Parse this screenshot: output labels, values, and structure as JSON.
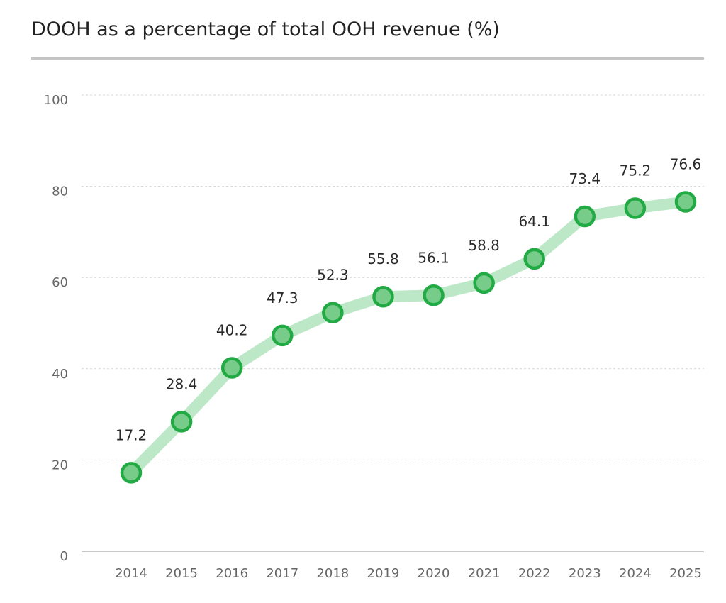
{
  "chart_data": {
    "type": "line",
    "title": "DOOH as a percentage of total OOH revenue (%)",
    "xlabel": "",
    "ylabel": "",
    "categories": [
      "2014",
      "2015",
      "2016",
      "2017",
      "2018",
      "2019",
      "2020",
      "2021",
      "2022",
      "2023",
      "2024",
      "2025"
    ],
    "values": [
      17.2,
      28.4,
      40.2,
      47.3,
      52.3,
      55.8,
      56.1,
      58.8,
      64.1,
      73.4,
      75.2,
      76.6
    ],
    "ylim": [
      0,
      100
    ],
    "yticks": [
      0,
      20,
      40,
      60,
      80,
      100
    ],
    "grid": true,
    "data_labels": true,
    "colors": {
      "line": "#bde8c8",
      "marker_fill": "#77cc8a",
      "marker_stroke": "#22aa44"
    }
  }
}
